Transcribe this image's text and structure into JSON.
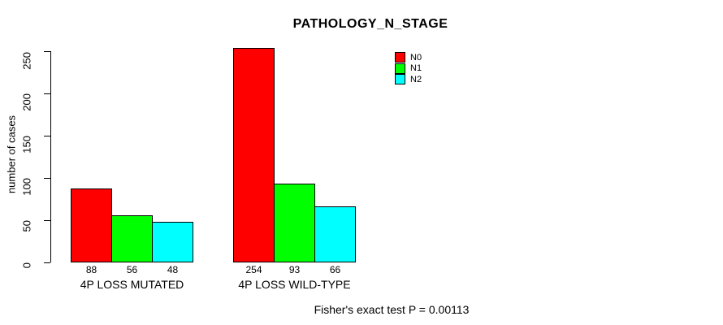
{
  "chart_data": {
    "type": "bar",
    "title": "PATHOLOGY_N_STAGE",
    "categories": [
      "4P LOSS MUTATED",
      "4P LOSS WILD-TYPE"
    ],
    "series": [
      {
        "name": "N0",
        "color": "#ff0000",
        "values": [
          88,
          254
        ]
      },
      {
        "name": "N1",
        "color": "#00ff00",
        "values": [
          56,
          93
        ]
      },
      {
        "name": "N2",
        "color": "#00ffff",
        "values": [
          48,
          66
        ]
      }
    ],
    "xlabel": "",
    "ylabel": "number of cases",
    "ylim": [
      0,
      250
    ],
    "yticks": [
      0,
      50,
      100,
      150,
      200,
      250
    ],
    "grid": false,
    "bar_value_labels": [
      [
        88,
        56,
        48
      ],
      [
        254,
        93,
        66
      ]
    ],
    "legend_position": "inside-top-center",
    "annotation": "Fisher's exact test P = 0.00113"
  }
}
